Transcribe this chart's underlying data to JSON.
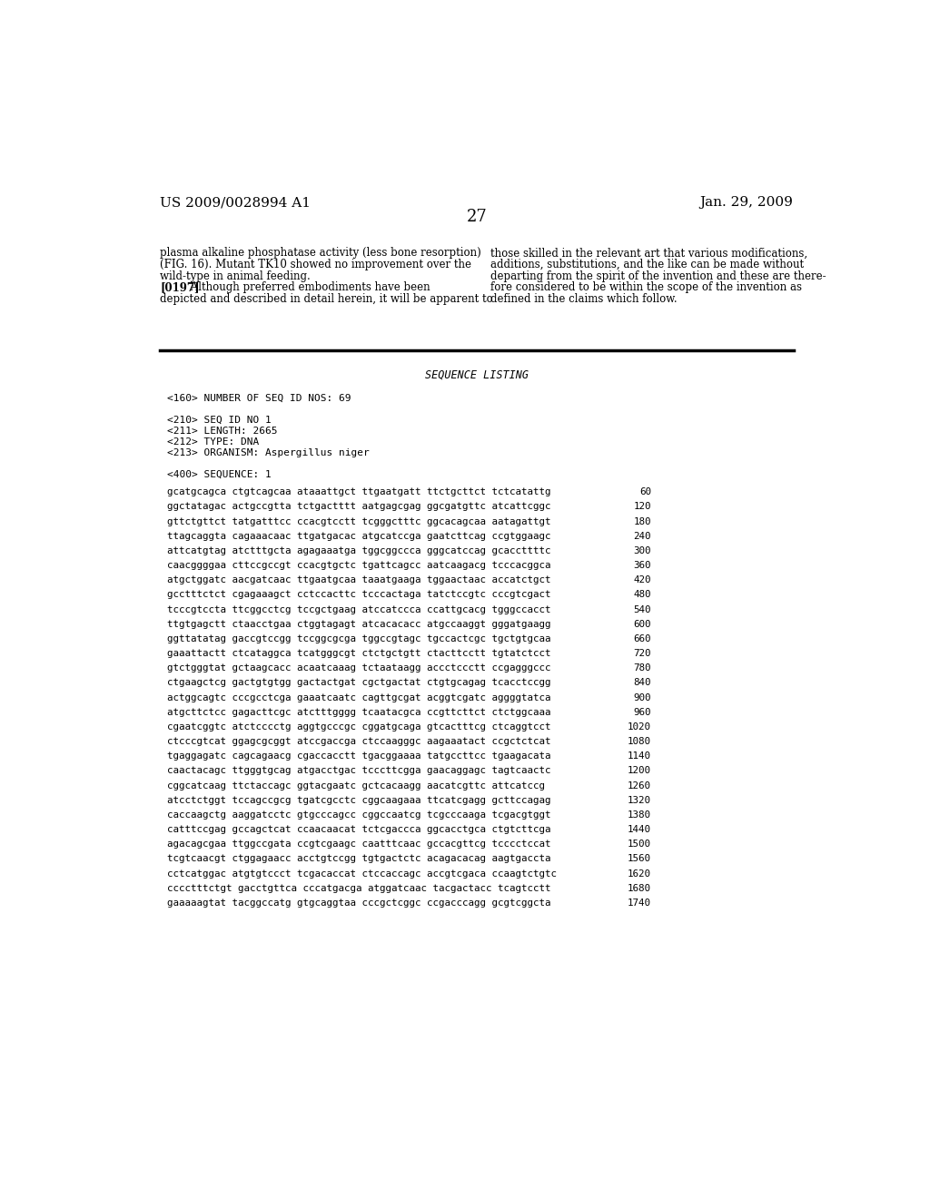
{
  "title_left": "US 2009/0028994 A1",
  "title_right": "Jan. 29, 2009",
  "page_number": "27",
  "background_color": "#ffffff",
  "text_color": "#000000",
  "body_text_left": [
    "plasma alkaline phosphatase activity (less bone resorption)",
    "(FIG. 16). Mutant TK10 showed no improvement over the",
    "wild-type in animal feeding.",
    "[0197]  Although preferred embodiments have been",
    "depicted and described in detail herein, it will be apparent to"
  ],
  "body_text_right": [
    "those skilled in the relevant art that various modifications,",
    "additions, substitutions, and the like can be made without",
    "departing from the spirit of the invention and these are there-",
    "fore considered to be within the scope of the invention as",
    "defined in the claims which follow."
  ],
  "sequence_title": "SEQUENCE LISTING",
  "seq_meta": [
    "<160> NUMBER OF SEQ ID NOS: 69",
    "",
    "<210> SEQ ID NO 1",
    "<211> LENGTH: 2665",
    "<212> TYPE: DNA",
    "<213> ORGANISM: Aspergillus niger",
    "",
    "<400> SEQUENCE: 1"
  ],
  "sequence_lines": [
    [
      "gcatgcagca ctgtcagcaa ataaattgct ttgaatgatt ttctgcttct tctcatattg",
      "60"
    ],
    [
      "ggctatagac actgccgtta tctgactttt aatgagcgag ggcgatgttc atcattcggc",
      "120"
    ],
    [
      "gttctgttct tatgatttcc ccacgtcctt tcgggctttc ggcacagcaa aatagattgt",
      "180"
    ],
    [
      "ttagcaggta cagaaacaac ttgatgacac atgcatccga gaatcttcag ccgtggaagc",
      "240"
    ],
    [
      "attcatgtag atctttgcta agagaaatga tggcggccca gggcatccag gcaccttttc",
      "300"
    ],
    [
      "caacggggaa cttccgccgt ccacgtgctc tgattcagcc aatcaagacg tcccacggca",
      "360"
    ],
    [
      "atgctggatc aacgatcaac ttgaatgcaa taaatgaaga tggaactaac accatctgct",
      "420"
    ],
    [
      "gcctttctct cgagaaagct cctccacttc tcccactaga tatctccgtc cccgtcgact",
      "480"
    ],
    [
      "tcccgtccta ttcggcctcg tccgctgaag atccatccca ccattgcacg tgggccacct",
      "540"
    ],
    [
      "ttgtgagctt ctaacctgaa ctggtagagt atcacacacc atgccaaggt gggatgaagg",
      "600"
    ],
    [
      "ggttatatag gaccgtccgg tccggcgcga tggccgtagc tgccactcgc tgctgtgcaa",
      "660"
    ],
    [
      "gaaattactt ctcataggca tcatgggcgt ctctgctgtt ctacttcctt tgtatctcct",
      "720"
    ],
    [
      "gtctgggtat gctaagcacc acaatcaaag tctaataagg accctccctt ccgagggccc",
      "780"
    ],
    [
      "ctgaagctcg gactgtgtgg gactactgat cgctgactat ctgtgcagag tcacctccgg",
      "840"
    ],
    [
      "actggcagtc cccgcctcga gaaatcaatc cagttgcgat acggtcgatc aggggtatca",
      "900"
    ],
    [
      "atgcttctcc gagacttcgc atctttgggg tcaatacgca ccgttcttct ctctggcaaa",
      "960"
    ],
    [
      "cgaatcggtc atctcccctg aggtgcccgc cggatgcaga gtcactttcg ctcaggtcct",
      "1020"
    ],
    [
      "ctcccgtcat ggagcgcggt atccgaccga ctccaagggc aagaaatact ccgctctcat",
      "1080"
    ],
    [
      "tgaggagatc cagcagaacg cgaccacctt tgacggaaaa tatgccttcc tgaagacata",
      "1140"
    ],
    [
      "caactacagc ttgggtgcag atgacctgac tcccttcgga gaacaggagc tagtcaactc",
      "1200"
    ],
    [
      "cggcatcaag ttctaccagc ggtacgaatc gctcacaagg aacatcgttc attcatccg",
      "1260"
    ],
    [
      "atcctctggt tccagccgcg tgatcgcctc cggcaagaaa ttcatcgagg gcttccagag",
      "1320"
    ],
    [
      "caccaagctg aaggatcctc gtgcccagcc cggccaatcg tcgcccaaga tcgacgtggt",
      "1380"
    ],
    [
      "catttccgag gccagctcat ccaacaacat tctcgaccca ggcacctgca ctgtcttcga",
      "1440"
    ],
    [
      "agacagcgaa ttggccgata ccgtcgaagc caatttcaac gccacgttcg tcccctccat",
      "1500"
    ],
    [
      "tcgtcaacgt ctggagaacc acctgtccgg tgtgactctc acagacacag aagtgaccta",
      "1560"
    ],
    [
      "cctcatggac atgtgtccct tcgacaccat ctccaccagc accgtcgaca ccaagtctgtc",
      "1620"
    ],
    [
      "cccctttctgt gacctgttca cccatgacga atggatcaac tacgactacc tcagtcctt",
      "1680"
    ],
    [
      "gaaaaagtat tacggccatg gtgcaggtaa cccgctcggc ccgacccagg gcgtcggcta",
      "1740"
    ]
  ]
}
